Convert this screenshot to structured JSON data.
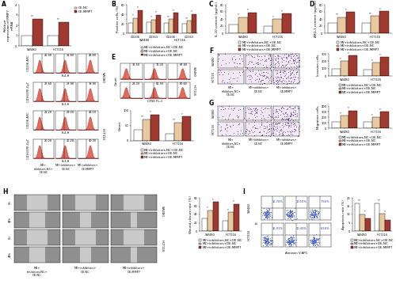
{
  "panel_letters": [
    "A",
    "B",
    "C",
    "D",
    "E",
    "F",
    "G",
    "H",
    "I"
  ],
  "chart_data": [
    {
      "type": "bar",
      "y_label": "Relative expression of MMP7 mRNA",
      "categories": [
        "SW480",
        "HCT116"
      ],
      "series": [
        {
          "name": "OE-NC",
          "color": "#ffffff",
          "values": [
            1.0,
            1.0
          ]
        },
        {
          "name": "OE-MMP7",
          "color": "#a0392f",
          "values": [
            2.6,
            2.3
          ]
        }
      ],
      "ylim": [
        0,
        4
      ],
      "yticks": [
        0,
        1,
        2,
        3,
        4
      ],
      "annotations": [
        [
          "**"
        ],
        [
          "**"
        ]
      ],
      "legend": "right"
    },
    {
      "type": "bar",
      "y_label": "Positive cells (%)",
      "categories": [
        "CD206",
        "CD163",
        "CD206",
        "CD163"
      ],
      "groups": [
        "SW480",
        "HCT116"
      ],
      "series": [
        {
          "name": "M2+inhibitors-NC+OE-NC",
          "color": "#ffffff",
          "values": [
            21.0,
            22.6,
            21.2,
            20.2
          ]
        },
        {
          "name": "M2+inhibitors+OE-NC",
          "color": "#e8c9a0",
          "values": [
            31.8,
            28.9,
            29.2,
            26.2
          ]
        },
        {
          "name": "M2+inhibitors+OE-MMP7",
          "color": "#a0392f",
          "values": [
            48.8,
            38.9,
            43.1,
            40.3
          ]
        }
      ],
      "ylim": [
        0,
        60
      ],
      "yticks": [
        0,
        20,
        40,
        60
      ],
      "annotations": [
        [
          "*",
          "*"
        ],
        [
          "*",
          "*"
        ],
        [
          "**",
          "*"
        ],
        [
          "**",
          "*"
        ]
      ],
      "legend": "below"
    },
    {
      "type": "bar",
      "y_label": "IL-10 content (pg/mL)",
      "categories": [
        "SW480",
        "HCT116"
      ],
      "series": [
        {
          "name": "M2+inhibitors-NC+OE-NC",
          "color": "#ffffff",
          "values": [
            25,
            20
          ]
        },
        {
          "name": "M2+inhibitors+OE-NC",
          "color": "#e8c9a0",
          "values": [
            45,
            40
          ]
        },
        {
          "name": "M2+inhibitors+OE-MMP7",
          "color": "#a0392f",
          "values": [
            58,
            55
          ]
        }
      ],
      "ylim": [
        0,
        80
      ],
      "yticks": [
        0,
        20,
        40,
        60,
        80
      ],
      "annotations": [
        [
          "*",
          "*"
        ],
        [
          "*",
          "*"
        ]
      ],
      "legend": "below"
    },
    {
      "type": "bar",
      "y_label": "ARG-1 content (pg/mL)",
      "categories": [
        "SW480",
        "HCT116"
      ],
      "series": [
        {
          "name": "M2+inhibitors-NC+OE-NC",
          "color": "#ffffff",
          "values": [
            28,
            30
          ]
        },
        {
          "name": "M2+inhibitors+OE-NC",
          "color": "#e8c9a0",
          "values": [
            45,
            48
          ]
        },
        {
          "name": "M2+inhibitors+OE-MMP7",
          "color": "#a0392f",
          "values": [
            60,
            62
          ]
        }
      ],
      "ylim": [
        0,
        80
      ],
      "yticks": [
        0,
        20,
        40,
        60,
        80
      ],
      "annotations": [
        [
          "**",
          "*"
        ],
        [
          "**",
          "*"
        ]
      ],
      "legend": "below"
    },
    {
      "type": "bar",
      "y_label": "Count",
      "categories": [
        "SW480",
        "HCT116"
      ],
      "series": [
        {
          "name": "M2+inhibitors-NC+OE-NC",
          "color": "#ffffff",
          "values": [
            36.5,
            24.2
          ]
        },
        {
          "name": "M2+inhibitors+OE-NC",
          "color": "#e8c9a0",
          "values": [
            72.2,
            61.5
          ]
        },
        {
          "name": "M2+inhibitors+OE-MMP7",
          "color": "#a0392f",
          "values": [
            87.8,
            80.6
          ]
        }
      ],
      "ylim": [
        0,
        100
      ],
      "yticks": [
        0,
        50,
        100
      ],
      "annotations": [
        [
          "**",
          "*"
        ],
        [
          "**",
          "*"
        ]
      ],
      "legend": "below"
    },
    {
      "type": "bar",
      "y_label": "Invasion cells",
      "categories": [
        "SW480",
        "HCT116"
      ],
      "series": [
        {
          "name": "M2+inhibitors-NC+OE-NC",
          "color": "#ffffff",
          "values": [
            100,
            90
          ]
        },
        {
          "name": "M2+inhibitors+OE-NC",
          "color": "#e8c9a0",
          "values": [
            200,
            180
          ]
        },
        {
          "name": "M2+inhibitors+OE-MMP7",
          "color": "#a0392f",
          "values": [
            280,
            260
          ]
        }
      ],
      "ylim": [
        0,
        300
      ],
      "yticks": [
        0,
        100,
        200,
        300
      ],
      "annotations": [
        [
          "*",
          "*"
        ],
        [
          "*",
          "*"
        ]
      ],
      "legend": "below"
    },
    {
      "type": "bar",
      "y_label": "Migration cells",
      "categories": [
        "SW480",
        "HCT116"
      ],
      "series": [
        {
          "name": "M2+inhibitors-NC+OE-NC",
          "color": "#ffffff",
          "values": [
            120,
            110
          ]
        },
        {
          "name": "M2+inhibitors+OE-NC",
          "color": "#e8c9a0",
          "values": [
            230,
            200
          ]
        },
        {
          "name": "M2+inhibitors+OE-MMP7",
          "color": "#a0392f",
          "values": [
            320,
            300
          ]
        }
      ],
      "ylim": [
        0,
        400
      ],
      "yticks": [
        0,
        100,
        200,
        300,
        400
      ],
      "annotations": [
        [
          "*",
          "*"
        ],
        [
          "*",
          "*"
        ]
      ],
      "legend": "below"
    },
    {
      "type": "bar",
      "y_label": "Wound closure rate (%)",
      "categories": [
        "SW480",
        "HCT116"
      ],
      "series": [
        {
          "name": "M2+inhibitors-NC+OE-NC",
          "color": "#ffffff",
          "values": [
            30,
            25
          ]
        },
        {
          "name": "M2+inhibitors+OE-NC",
          "color": "#e8c9a0",
          "values": [
            50,
            45
          ]
        },
        {
          "name": "M2+inhibitors+OE-MMP7",
          "color": "#a0392f",
          "values": [
            70,
            65
          ]
        }
      ],
      "ylim": [
        0,
        80
      ],
      "yticks": [
        0,
        20,
        40,
        60,
        80
      ],
      "annotations": [
        [
          "*",
          "*"
        ],
        [
          "*",
          "*"
        ]
      ],
      "legend": "below"
    },
    {
      "type": "bar",
      "y_label": "Apoptosis rate (%)",
      "categories": [
        "SW480",
        "HCT116"
      ],
      "series": [
        {
          "name": "M2+inhibitors-NC+OE-NC",
          "color": "#ffffff",
          "values": [
            16.7,
            16.9
          ]
        },
        {
          "name": "M2+inhibitors+OE-NC",
          "color": "#e8c9a0",
          "values": [
            10.1,
            10.4
          ]
        },
        {
          "name": "M2+inhibitors+OE-MMP7",
          "color": "#a0392f",
          "values": [
            7.5,
            6.5
          ]
        }
      ],
      "ylim": [
        0,
        20
      ],
      "yticks": [
        0,
        5,
        10,
        15,
        20
      ],
      "annotations": [
        [
          "**",
          "*"
        ],
        [
          "**",
          "*"
        ]
      ],
      "legend": "below"
    }
  ],
  "flow_A": {
    "columns": [
      "M2+inhibitors-NC+OE-NC",
      "M2+inhibitors+OE-NC",
      "M2+inhibitors+OE-MMP7"
    ],
    "rows": [
      {
        "antigen": "CD206 APC",
        "detector": "FL4-H",
        "cell_line": "SW480",
        "values": [
          "21.00",
          "31.80",
          "48.80"
        ]
      },
      {
        "antigen": "CD163 PE-Cy7",
        "detector": "FL3-H",
        "cell_line": "SW480",
        "values": [
          "22.60",
          "28.90",
          "38.90"
        ]
      },
      {
        "antigen": "CD206 APC",
        "detector": "FL4-H",
        "cell_line": "HCT116",
        "values": [
          "21.20",
          "29.20",
          "43.10"
        ]
      },
      {
        "antigen": "CD163 PE-Cy7",
        "detector": "FL3-H",
        "cell_line": "HCT116",
        "values": [
          "20.20",
          "26.20",
          "40.30"
        ]
      }
    ]
  },
  "flow_E": {
    "x_label": "CFSE FL-1",
    "y_label": "Count",
    "rows": [
      {
        "cell_line": "SW480",
        "values": [
          "36.50",
          "72.20",
          "87.80"
        ]
      },
      {
        "cell_line": "HCT116",
        "values": [
          "24.20",
          "61.50",
          "80.60"
        ]
      }
    ]
  },
  "images_F": {
    "rows": [
      "SW480",
      "HCT116"
    ],
    "columns": [
      "M2+inhibitors-NC+OE-NC",
      "M2+inhibitors+OE-NC",
      "M2+inhibitors+OE-MMP7"
    ]
  },
  "images_G": {
    "rows": [
      "SW480",
      "HCT116"
    ],
    "columns": [
      "M2+inhibitors-NC+OE-NC",
      "M2+inhibitors+OE-NC",
      "M2+inhibitors+OE-MMP7"
    ]
  },
  "images_H": {
    "rows": [
      "0h",
      "48h",
      "0h",
      "48h"
    ],
    "cell_lines": [
      "SW480",
      "HCT116"
    ],
    "columns": [
      "M2+inhibitors-NC+OE-NC",
      "M2+inhibitors+OE-NC",
      "M2+inhibitors+OE-MMP7"
    ]
  },
  "flow_I": {
    "x_label": "Annexin V-APC",
    "y_label": "PI",
    "rows": [
      {
        "cell_line": "SW480",
        "values": [
          "16.70%",
          "10.10%",
          "7.50%"
        ]
      },
      {
        "cell_line": "HCT116",
        "values": [
          "16.91%",
          "10.43%",
          "6.50%"
        ]
      }
    ]
  }
}
